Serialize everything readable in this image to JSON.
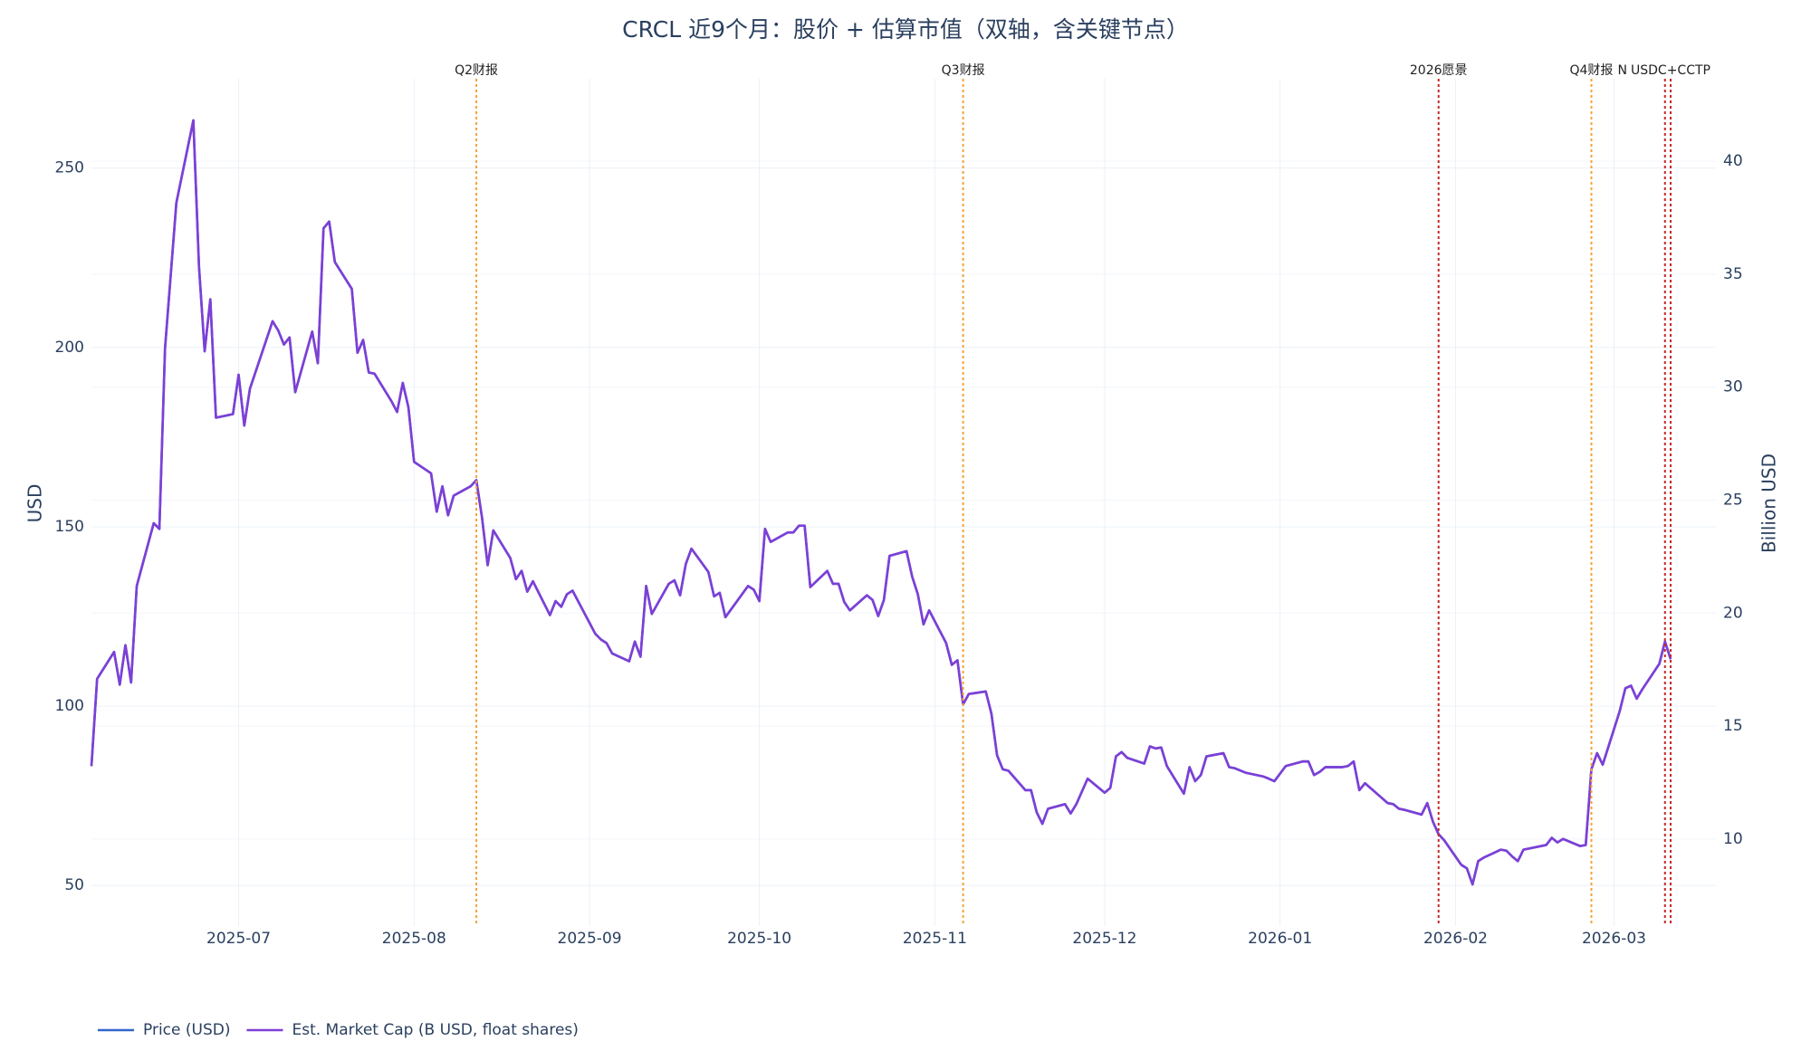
{
  "chart_data": {
    "type": "line",
    "title": "CRCL 近9个月：股价 + 估算市值（双轴，含关键节点）",
    "y_label": "USD",
    "y2_label": "Billion USD",
    "x": [
      "2025-06-05",
      "2025-06-06",
      "2025-06-09",
      "2025-06-10",
      "2025-06-11",
      "2025-06-12",
      "2025-06-13",
      "2025-06-16",
      "2025-06-17",
      "2025-06-18",
      "2025-06-20",
      "2025-06-23",
      "2025-06-24",
      "2025-06-25",
      "2025-06-26",
      "2025-06-27",
      "2025-06-30",
      "2025-07-01",
      "2025-07-02",
      "2025-07-03",
      "2025-07-07",
      "2025-07-08",
      "2025-07-09",
      "2025-07-10",
      "2025-07-11",
      "2025-07-14",
      "2025-07-15",
      "2025-07-16",
      "2025-07-17",
      "2025-07-18",
      "2025-07-21",
      "2025-07-22",
      "2025-07-23",
      "2025-07-24",
      "2025-07-25",
      "2025-07-28",
      "2025-07-29",
      "2025-07-30",
      "2025-07-31",
      "2025-08-01",
      "2025-08-04",
      "2025-08-05",
      "2025-08-06",
      "2025-08-07",
      "2025-08-08",
      "2025-08-11",
      "2025-08-12",
      "2025-08-13",
      "2025-08-14",
      "2025-08-15",
      "2025-08-18",
      "2025-08-19",
      "2025-08-20",
      "2025-08-21",
      "2025-08-22",
      "2025-08-25",
      "2025-08-26",
      "2025-08-27",
      "2025-08-28",
      "2025-08-29",
      "2025-09-02",
      "2025-09-03",
      "2025-09-04",
      "2025-09-05",
      "2025-09-08",
      "2025-09-09",
      "2025-09-10",
      "2025-09-11",
      "2025-09-12",
      "2025-09-15",
      "2025-09-16",
      "2025-09-17",
      "2025-09-18",
      "2025-09-19",
      "2025-09-22",
      "2025-09-23",
      "2025-09-24",
      "2025-09-25",
      "2025-09-29",
      "2025-09-30",
      "2025-10-01",
      "2025-10-02",
      "2025-10-03",
      "2025-10-06",
      "2025-10-07",
      "2025-10-08",
      "2025-10-09",
      "2025-10-10",
      "2025-10-13",
      "2025-10-14",
      "2025-10-15",
      "2025-10-16",
      "2025-10-17",
      "2025-10-20",
      "2025-10-21",
      "2025-10-22",
      "2025-10-23",
      "2025-10-24",
      "2025-10-27",
      "2025-10-28",
      "2025-10-29",
      "2025-10-30",
      "2025-10-31",
      "2025-11-03",
      "2025-11-04",
      "2025-11-05",
      "2025-11-06",
      "2025-11-07",
      "2025-11-10",
      "2025-11-11",
      "2025-11-12",
      "2025-11-13",
      "2025-11-14",
      "2025-11-17",
      "2025-11-18",
      "2025-11-19",
      "2025-11-20",
      "2025-11-21",
      "2025-11-24",
      "2025-11-25",
      "2025-11-26",
      "2025-11-28",
      "2025-12-01",
      "2025-12-02",
      "2025-12-03",
      "2025-12-04",
      "2025-12-05",
      "2025-12-08",
      "2025-12-09",
      "2025-12-10",
      "2025-12-11",
      "2025-12-12",
      "2025-12-15",
      "2025-12-16",
      "2025-12-17",
      "2025-12-18",
      "2025-12-19",
      "2025-12-22",
      "2025-12-23",
      "2025-12-24",
      "2025-12-26",
      "2025-12-29",
      "2025-12-30",
      "2025-12-31",
      "2026-01-02",
      "2026-01-05",
      "2026-01-06",
      "2026-01-07",
      "2026-01-08",
      "2026-01-09",
      "2026-01-12",
      "2026-01-13",
      "2026-01-14",
      "2026-01-15",
      "2026-01-16",
      "2026-01-20",
      "2026-01-21",
      "2026-01-22",
      "2026-01-23",
      "2026-01-26",
      "2026-01-27",
      "2026-01-28",
      "2026-01-29",
      "2026-01-30",
      "2026-02-02",
      "2026-02-03",
      "2026-02-04",
      "2026-02-05",
      "2026-02-06",
      "2026-02-09",
      "2026-02-10",
      "2026-02-11",
      "2026-02-12",
      "2026-02-13",
      "2026-02-17",
      "2026-02-18",
      "2026-02-19",
      "2026-02-20",
      "2026-02-23",
      "2026-02-24",
      "2026-02-25",
      "2026-02-26",
      "2026-02-27",
      "2026-03-02",
      "2026-03-03",
      "2026-03-04",
      "2026-03-05",
      "2026-03-06",
      "2026-03-09",
      "2026-03-10",
      "2026-03-11"
    ],
    "series": [
      {
        "name": "Price (USD)",
        "color": "#3366cc",
        "axis": "y",
        "values": [
          83.3,
          107.6,
          115.1,
          106,
          117,
          106.6,
          133.5,
          151,
          149.4,
          199.8,
          240.3,
          263.3,
          222.5,
          198.9,
          213.4,
          180.4,
          181.4,
          192.4,
          178.2,
          188.5,
          207.3,
          204.7,
          200.8,
          202.8,
          187.5,
          204.4,
          195.6,
          233.2,
          235.1,
          223.8,
          216.3,
          198.5,
          202.1,
          193,
          192.7,
          185,
          182,
          190.1,
          183.3,
          168.1,
          164.9,
          154.2,
          161.3,
          153.2,
          158.7,
          161.3,
          163,
          152.6,
          139.3,
          149,
          141.3,
          135.4,
          137.7,
          131.9,
          134.8,
          125.4,
          129.3,
          127.7,
          131.2,
          132.2,
          120.2,
          118.6,
          117.6,
          114.7,
          112.5,
          118,
          113.8,
          133.5,
          125.7,
          134.1,
          135.1,
          130.9,
          139.6,
          143.9,
          137.4,
          130.6,
          131.6,
          124.8,
          133.5,
          132.5,
          129.3,
          149.4,
          145.8,
          148.4,
          148.4,
          150.3,
          150.3,
          133.2,
          137.7,
          134.1,
          134.1,
          129,
          126.7,
          130.9,
          129.6,
          125.1,
          129.6,
          141.9,
          143.2,
          136.1,
          131.2,
          122.8,
          126.7,
          117.6,
          111.5,
          112.8,
          100.5,
          103.4,
          104.1,
          97.9,
          86.3,
          82.4,
          82,
          76.6,
          76.6,
          70.4,
          67.2,
          71.4,
          72.7,
          70.1,
          72.7,
          79.8,
          75.9,
          77.2,
          86,
          87.2,
          85.6,
          84,
          88.8,
          88.2,
          88.5,
          83.3,
          75.6,
          83,
          79.1,
          80.8,
          86,
          86.9,
          83,
          82.7,
          81.4,
          80.4,
          79.8,
          79.1,
          83.3,
          84.6,
          84.6,
          80.8,
          81.7,
          83,
          83,
          83.3,
          84.6,
          76.6,
          78.5,
          73,
          72.7,
          71.4,
          71.1,
          69.8,
          73,
          67.8,
          64.3,
          62.6,
          55.8,
          54.8,
          50.3,
          56.8,
          57.8,
          60,
          59.7,
          58.1,
          56.8,
          60,
          61.3,
          63.3,
          62,
          63,
          61,
          61.3,
          82.4,
          86.9,
          83.7,
          98.6,
          105,
          105.7,
          102.1,
          104.7,
          111.8,
          118,
          113.1
        ]
      },
      {
        "name": "Est. Market Cap (B USD, float shares)",
        "color": "#7e3fd6",
        "axis": "y2",
        "values": [
          13.23,
          17.09,
          18.28,
          16.83,
          18.58,
          16.93,
          21.2,
          23.98,
          23.73,
          31.73,
          38.16,
          41.81,
          35.33,
          31.59,
          33.89,
          28.65,
          28.81,
          30.55,
          28.3,
          29.93,
          32.92,
          32.51,
          31.89,
          32.2,
          29.78,
          32.46,
          31.06,
          37.03,
          37.33,
          35.54,
          34.35,
          31.52,
          32.09,
          30.65,
          30.6,
          29.38,
          28.9,
          30.19,
          29.11,
          26.69,
          26.19,
          24.49,
          25.61,
          24.33,
          25.2,
          25.61,
          25.88,
          24.23,
          22.12,
          23.66,
          22.44,
          21.5,
          21.87,
          20.95,
          21.41,
          19.91,
          20.53,
          20.28,
          20.83,
          20.99,
          19.09,
          18.83,
          18.67,
          18.21,
          17.87,
          18.74,
          18.07,
          21.2,
          19.96,
          21.3,
          21.45,
          20.79,
          22.17,
          22.85,
          21.82,
          20.74,
          20.9,
          19.82,
          21.2,
          21.04,
          20.53,
          23.73,
          23.15,
          23.57,
          23.57,
          23.87,
          23.87,
          21.15,
          21.87,
          21.3,
          21.3,
          20.49,
          20.12,
          20.79,
          20.58,
          19.87,
          20.58,
          22.53,
          22.74,
          21.61,
          20.83,
          19.5,
          20.12,
          18.67,
          17.71,
          17.91,
          15.96,
          16.42,
          16.53,
          15.55,
          13.7,
          13.09,
          13.02,
          12.16,
          12.16,
          11.18,
          10.67,
          11.34,
          11.54,
          11.13,
          11.54,
          12.67,
          12.05,
          12.26,
          13.66,
          13.85,
          13.59,
          13.34,
          14.1,
          14.01,
          14.05,
          13.23,
          12.01,
          13.18,
          12.56,
          12.83,
          13.66,
          13.8,
          13.18,
          13.13,
          12.93,
          12.77,
          12.67,
          12.56,
          13.23,
          13.43,
          13.43,
          12.83,
          12.97,
          13.18,
          13.18,
          13.23,
          13.43,
          12.16,
          12.47,
          11.59,
          11.54,
          11.34,
          11.29,
          11.08,
          11.59,
          10.77,
          10.21,
          9.94,
          8.86,
          8.7,
          7.99,
          9.02,
          9.18,
          9.53,
          9.48,
          9.23,
          9.02,
          9.53,
          9.73,
          10.05,
          9.85,
          10,
          9.69,
          9.73,
          13.09,
          13.8,
          13.29,
          15.66,
          16.67,
          16.79,
          16.21,
          16.63,
          17.75,
          18.74,
          17.96
        ]
      }
    ],
    "xlim": [
      "2025-06-05",
      "2026-03-19"
    ],
    "xticks": [
      "2025-07",
      "2025-08",
      "2025-09",
      "2025-10",
      "2025-11",
      "2025-12",
      "2026-01",
      "2026-02",
      "2026-03"
    ],
    "ylim": [
      38.7,
      274.9
    ],
    "yticks": [
      50,
      100,
      150,
      200,
      250
    ],
    "y2lim": [
      6.15,
      43.65
    ],
    "y2ticks": [
      10,
      15,
      20,
      25,
      30,
      35,
      40
    ],
    "grid": true,
    "legend": "bottom-left",
    "events": [
      {
        "x": "2025-08-12",
        "label": "Q2财报",
        "color": "#f5a33a"
      },
      {
        "x": "2025-11-06",
        "label": "Q3财报",
        "color": "#f5a33a"
      },
      {
        "x": "2026-01-29",
        "label": "2026愿景",
        "color": "#c62828"
      },
      {
        "x": "2026-02-25",
        "label": "Q4财报",
        "color": "#f5a33a"
      },
      {
        "x": "2026-03-10",
        "label": "N",
        "color": "#c62828"
      },
      {
        "x": "2026-03-11",
        "label": "USDC+CCTP",
        "color": "#c62828"
      }
    ]
  }
}
